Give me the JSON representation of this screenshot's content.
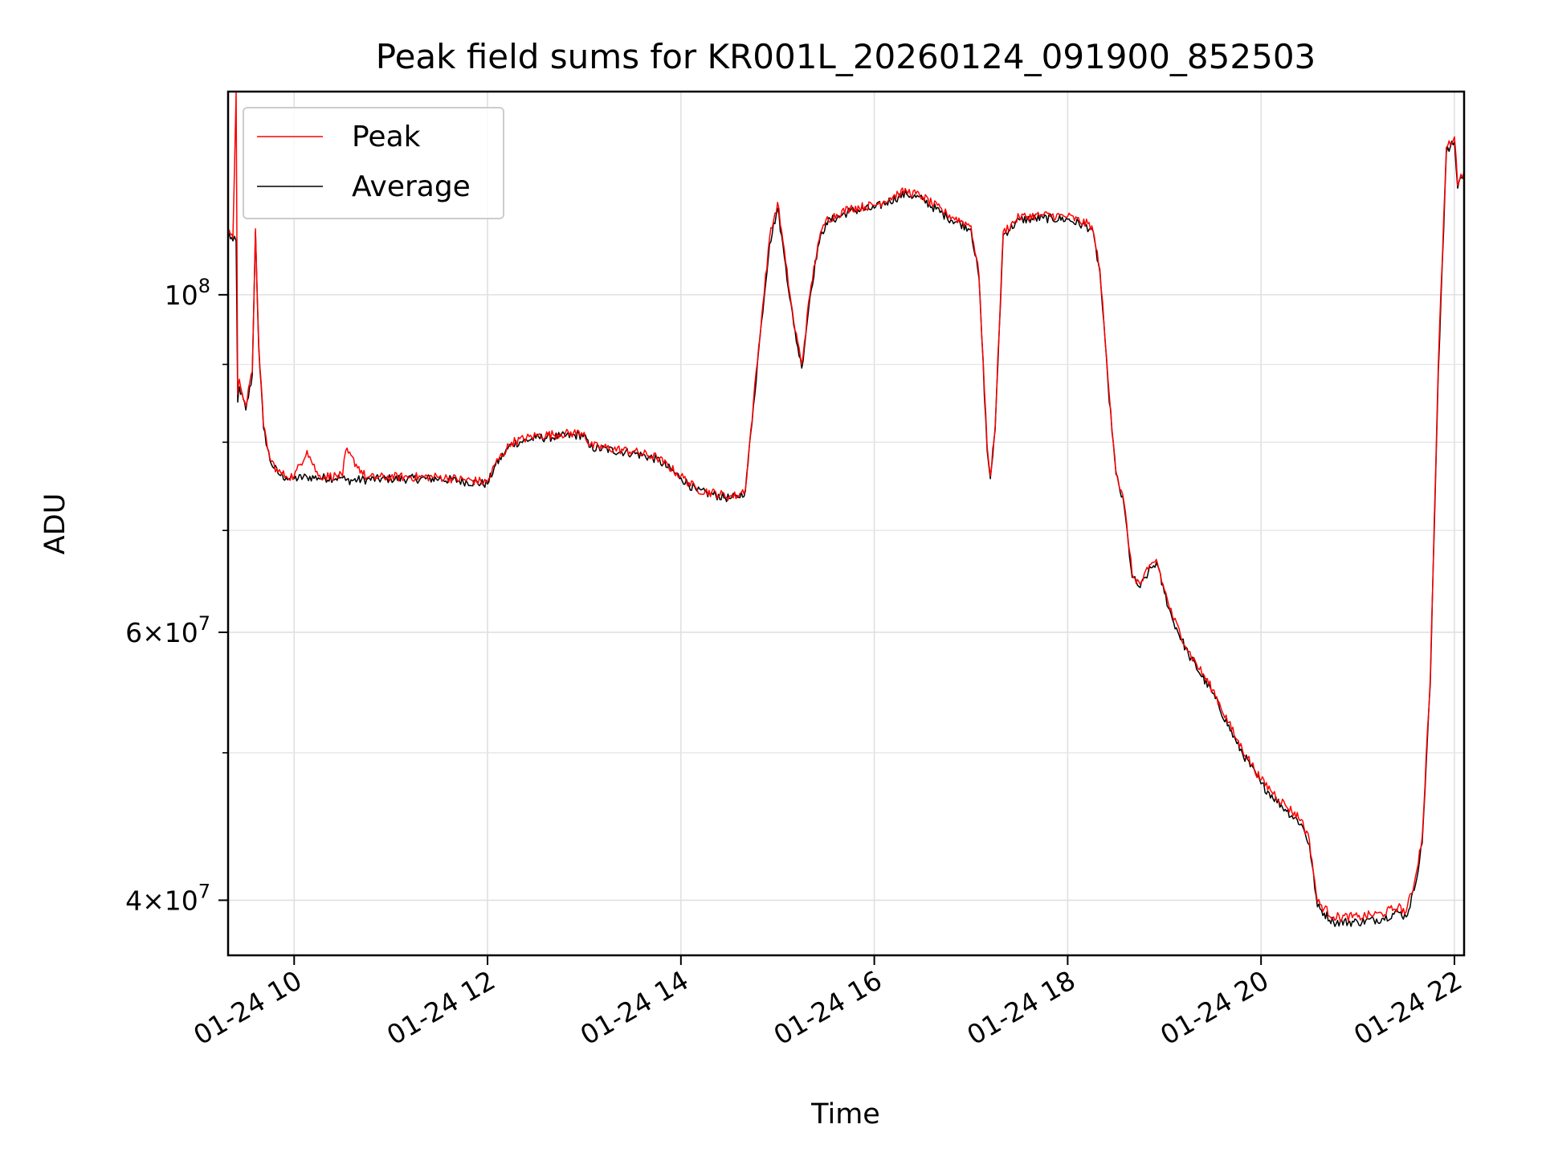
{
  "chart_data": {
    "type": "line",
    "title": "Peak field sums for KR001L_20260124_091900_852503",
    "xlabel": "Time",
    "ylabel": "ADU",
    "yscale": "log",
    "ylim": [
      36800000,
      136000000
    ],
    "xlim": [
      "2026-01-24 09:19",
      "2026-01-24 22:06"
    ],
    "xtick_labels": [
      "01-24 10",
      "01-24 12",
      "01-24 14",
      "01-24 16",
      "01-24 18",
      "01-24 20",
      "01-24 22"
    ],
    "xtick_times": [
      "2026-01-24 10:00",
      "2026-01-24 12:00",
      "2026-01-24 14:00",
      "2026-01-24 16:00",
      "2026-01-24 18:00",
      "2026-01-24 20:00",
      "2026-01-24 22:00"
    ],
    "ytick_major": [
      {
        "value": 40000000,
        "mantissa": "4",
        "label_suffix": "10",
        "exponent": "7"
      },
      {
        "value": 60000000,
        "mantissa": "6",
        "label_suffix": "10",
        "exponent": "7"
      },
      {
        "value": 100000000,
        "mantissa": "",
        "label_suffix": "10",
        "exponent": "8"
      }
    ],
    "ytick_minor": [
      50000000,
      70000000,
      80000000,
      90000000
    ],
    "grid": true,
    "legend_position": "upper-left",
    "series": [
      {
        "name": "Peak",
        "color": "#ff0000",
        "x": [
          "09:19",
          "09:22",
          "09:24",
          "09:25",
          "09:26",
          "09:30",
          "09:34",
          "09:36",
          "09:38",
          "09:41",
          "09:45",
          "09:50",
          "09:55",
          "10:00",
          "10:08",
          "10:15",
          "10:30",
          "10:32",
          "10:45",
          "11:00",
          "11:30",
          "12:00",
          "12:05",
          "12:15",
          "12:30",
          "12:45",
          "13:00",
          "13:03",
          "13:30",
          "13:45",
          "14:00",
          "14:10",
          "14:30",
          "14:35",
          "14:40",
          "14:45",
          "14:50",
          "14:55",
          "15:00",
          "15:05",
          "15:10",
          "15:15",
          "15:20",
          "15:25",
          "15:30",
          "15:45",
          "16:00",
          "16:15",
          "16:20",
          "16:30",
          "16:45",
          "17:00",
          "17:05",
          "17:10",
          "17:12",
          "17:15",
          "17:20",
          "17:30",
          "17:45",
          "18:00",
          "18:15",
          "18:20",
          "18:25",
          "18:30",
          "18:35",
          "18:40",
          "18:45",
          "18:50",
          "18:55",
          "19:00",
          "19:05",
          "19:15",
          "19:30",
          "19:45",
          "20:00",
          "20:15",
          "20:25",
          "20:30",
          "20:35",
          "20:45",
          "21:00",
          "21:15",
          "21:25",
          "21:30",
          "21:35",
          "21:40",
          "21:45",
          "21:50",
          "21:55",
          "22:00",
          "22:02",
          "22:04",
          "22:06"
        ],
        "values": [
          110500000,
          109000000,
          136000000,
          86000000,
          88000000,
          84500000,
          89000000,
          110500000,
          93000000,
          82000000,
          78000000,
          76500000,
          76000000,
          76000000,
          79000000,
          76000000,
          76000000,
          79000000,
          75800000,
          75900000,
          75900000,
          75300000,
          77500000,
          80000000,
          80800000,
          81000000,
          81200000,
          79600000,
          78900000,
          78200000,
          76000000,
          74500000,
          73700000,
          73800000,
          74500000,
          85000000,
          96500000,
          109000000,
          115000000,
          105000000,
          96000000,
          90000000,
          100000000,
          108000000,
          112000000,
          114000000,
          114500000,
          116500000,
          117000000,
          116000000,
          113000000,
          111000000,
          103000000,
          79500000,
          76000000,
          82000000,
          110000000,
          112500000,
          112800000,
          112600000,
          111000000,
          104000000,
          88000000,
          76500000,
          73000000,
          65500000,
          64500000,
          66000000,
          67000000,
          64000000,
          61500000,
          58300000,
          55000000,
          51000000,
          48000000,
          46200000,
          45200000,
          43800000,
          39900000,
          39000000,
          39000000,
          39200000,
          39600000,
          39300000,
          41000000,
          44000000,
          56000000,
          90000000,
          125000000,
          127000000,
          118000000,
          120000000,
          120500000
        ]
      },
      {
        "name": "Average",
        "color": "#000000",
        "x": [
          "09:19",
          "09:22",
          "09:24",
          "09:25",
          "09:26",
          "09:30",
          "09:34",
          "09:36",
          "09:38",
          "09:41",
          "09:45",
          "09:50",
          "09:55",
          "10:00",
          "10:08",
          "10:15",
          "10:30",
          "10:32",
          "10:45",
          "11:00",
          "11:30",
          "12:00",
          "12:05",
          "12:15",
          "12:30",
          "12:45",
          "13:00",
          "13:03",
          "13:30",
          "13:45",
          "14:00",
          "14:10",
          "14:30",
          "14:35",
          "14:40",
          "14:45",
          "14:50",
          "14:55",
          "15:00",
          "15:05",
          "15:10",
          "15:15",
          "15:20",
          "15:25",
          "15:30",
          "15:45",
          "16:00",
          "16:15",
          "16:20",
          "16:30",
          "16:45",
          "17:00",
          "17:05",
          "17:10",
          "17:12",
          "17:15",
          "17:20",
          "17:30",
          "17:45",
          "18:00",
          "18:15",
          "18:20",
          "18:25",
          "18:30",
          "18:35",
          "18:40",
          "18:45",
          "18:50",
          "18:55",
          "19:00",
          "19:05",
          "19:15",
          "19:30",
          "19:45",
          "20:00",
          "20:15",
          "20:25",
          "20:30",
          "20:35",
          "20:45",
          "21:00",
          "21:15",
          "21:25",
          "21:30",
          "21:35",
          "21:40",
          "21:45",
          "21:50",
          "21:55",
          "22:00",
          "22:02",
          "22:04",
          "22:06"
        ],
        "values": [
          109800000,
          108500000,
          108500000,
          85000000,
          87000000,
          84000000,
          88500000,
          110000000,
          92500000,
          81700000,
          77800000,
          76300000,
          75800000,
          75700000,
          75900000,
          75800000,
          75800000,
          75500000,
          75600000,
          75700000,
          75700000,
          75100000,
          77300000,
          79800000,
          80500000,
          80700000,
          80900000,
          79400000,
          78700000,
          78000000,
          75800000,
          74300000,
          73500000,
          73600000,
          74300000,
          84500000,
          96000000,
          108000000,
          114000000,
          104500000,
          95500000,
          89500000,
          99500000,
          107500000,
          111500000,
          113500000,
          114000000,
          116000000,
          116500000,
          115500000,
          112500000,
          110500000,
          102500000,
          79000000,
          75700000,
          81500000,
          109500000,
          112000000,
          112300000,
          112100000,
          110500000,
          103500000,
          87500000,
          76200000,
          72700000,
          65200000,
          64200000,
          65700000,
          66700000,
          63700000,
          61200000,
          58000000,
          54700000,
          50700000,
          47700000,
          45900000,
          44900000,
          43500000,
          39600000,
          38700000,
          38700000,
          38900000,
          39300000,
          39000000,
          40600000,
          43600000,
          55500000,
          89000000,
          124000000,
          126000000,
          117500000,
          119500000,
          120000000
        ]
      }
    ]
  }
}
